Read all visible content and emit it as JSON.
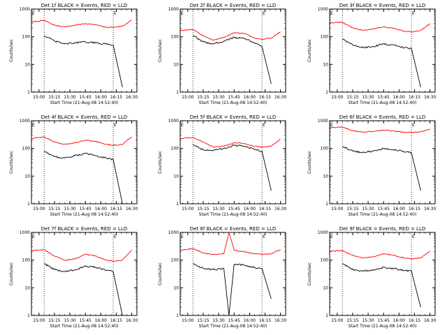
{
  "figure": {
    "xlabel": "Start Time (21-Aug-08 14:52:40)",
    "ylabel": "Counts/sec",
    "x_tick_labels": [
      "15:00",
      "15:15",
      "15:30",
      "15:45",
      "16:00",
      "16:15",
      "16:30"
    ],
    "y_tick_labels": [
      "1",
      "10",
      "100",
      "1000"
    ],
    "marker_labels": [
      "E",
      "E"
    ],
    "colors": {
      "events": "#000000",
      "lld": "#ff0000",
      "axes": "#000000"
    }
  },
  "chart_data": [
    {
      "type": "line",
      "title": "Det 1f BLACK = Events, RED = LLD",
      "x": [
        "14:53",
        "15:05",
        "15:15",
        "15:25",
        "15:35",
        "15:45",
        "15:55",
        "16:05",
        "16:12",
        "16:21",
        "16:30"
      ],
      "series": [
        {
          "name": "LLD",
          "values": [
            340,
            390,
            260,
            230,
            260,
            300,
            270,
            220,
            220,
            240,
            400
          ]
        },
        {
          "name": "Events",
          "values": [
            null,
            110,
            70,
            55,
            60,
            65,
            60,
            55,
            50,
            1.5,
            null
          ]
        }
      ],
      "markers": [
        "15:05",
        "16:12"
      ],
      "ylim": [
        1,
        1000
      ],
      "yscale": "log",
      "grid": false
    },
    {
      "type": "line",
      "title": "Det 2f BLACK = Events, RED = LLD",
      "x": [
        "14:53",
        "15:05",
        "15:15",
        "15:25",
        "15:35",
        "15:45",
        "15:55",
        "16:05",
        "16:12",
        "16:21",
        "16:30"
      ],
      "series": [
        {
          "name": "LLD",
          "values": [
            170,
            180,
            110,
            75,
            95,
            140,
            130,
            90,
            80,
            90,
            150
          ]
        },
        {
          "name": "Events",
          "values": [
            null,
            110,
            65,
            55,
            70,
            95,
            85,
            60,
            45,
            2,
            null
          ]
        }
      ],
      "markers": [
        "15:05",
        "16:12"
      ],
      "ylim": [
        1,
        1000
      ],
      "yscale": "log",
      "grid": false
    },
    {
      "type": "line",
      "title": "Det 3f BLACK = Events, RED = LLD",
      "x": [
        "14:53",
        "15:05",
        "15:15",
        "15:25",
        "15:35",
        "15:45",
        "15:55",
        "16:05",
        "16:12",
        "16:21",
        "16:30"
      ],
      "series": [
        {
          "name": "LLD",
          "values": [
            320,
            330,
            210,
            170,
            190,
            230,
            200,
            160,
            150,
            170,
            300
          ]
        },
        {
          "name": "Events",
          "values": [
            null,
            85,
            50,
            40,
            45,
            55,
            50,
            40,
            38,
            1.5,
            null
          ]
        }
      ],
      "markers": [
        "15:05",
        "16:12"
      ],
      "ylim": [
        1,
        1000
      ],
      "yscale": "log",
      "grid": false
    },
    {
      "type": "line",
      "title": "Det 4f BLACK = Events, RED = LLD",
      "x": [
        "14:53",
        "15:05",
        "15:15",
        "15:25",
        "15:35",
        "15:45",
        "15:55",
        "16:05",
        "16:12",
        "16:21",
        "16:30"
      ],
      "series": [
        {
          "name": "LLD",
          "values": [
            230,
            260,
            170,
            140,
            160,
            200,
            180,
            140,
            130,
            140,
            260
          ]
        },
        {
          "name": "Events",
          "values": [
            null,
            80,
            50,
            45,
            55,
            65,
            55,
            45,
            40,
            1,
            null
          ]
        }
      ],
      "markers": [
        "15:05",
        "16:12"
      ],
      "ylim": [
        1,
        1000
      ],
      "yscale": "log",
      "grid": false
    },
    {
      "type": "line",
      "title": "Det 5f BLACK = Events, RED = LLD",
      "x": [
        "14:53",
        "15:05",
        "15:15",
        "15:25",
        "15:35",
        "15:45",
        "15:55",
        "16:05",
        "16:12",
        "16:21",
        "16:30"
      ],
      "series": [
        {
          "name": "LLD",
          "values": [
            230,
            250,
            170,
            110,
            120,
            160,
            150,
            120,
            110,
            120,
            220
          ]
        },
        {
          "name": "Events",
          "values": [
            null,
            140,
            90,
            85,
            100,
            130,
            120,
            90,
            80,
            3,
            null
          ]
        }
      ],
      "markers": [
        "15:05",
        "16:12"
      ],
      "ylim": [
        1,
        1000
      ],
      "yscale": "log",
      "grid": false
    },
    {
      "type": "line",
      "title": "Det 6f BLACK = Events, RED = LLD",
      "x": [
        "14:53",
        "15:05",
        "15:15",
        "15:25",
        "15:35",
        "15:45",
        "15:55",
        "16:05",
        "16:12",
        "16:21",
        "16:30"
      ],
      "series": [
        {
          "name": "LLD",
          "values": [
            550,
            600,
            430,
            390,
            410,
            460,
            420,
            380,
            380,
            400,
            500
          ]
        },
        {
          "name": "Events",
          "values": [
            null,
            120,
            80,
            70,
            80,
            100,
            90,
            75,
            70,
            3,
            null
          ]
        }
      ],
      "markers": [
        "15:05",
        "16:12"
      ],
      "ylim": [
        1,
        1000
      ],
      "yscale": "log",
      "grid": false
    },
    {
      "type": "line",
      "title": "Det 7f BLACK = Events, RED = LLD",
      "x": [
        "14:53",
        "15:05",
        "15:15",
        "15:25",
        "15:35",
        "15:45",
        "15:55",
        "16:05",
        "16:12",
        "16:21",
        "16:30"
      ],
      "series": [
        {
          "name": "LLD",
          "values": [
            220,
            240,
            140,
            100,
            110,
            160,
            140,
            100,
            90,
            100,
            230
          ]
        },
        {
          "name": "Events",
          "values": [
            null,
            75,
            45,
            38,
            45,
            60,
            55,
            42,
            38,
            1,
            null
          ]
        }
      ],
      "markers": [
        "15:05",
        "16:12"
      ],
      "ylim": [
        1,
        1000
      ],
      "yscale": "log",
      "grid": false
    },
    {
      "type": "line",
      "title": "Det 8f BLACK = Events, RED = LLD",
      "x": [
        "14:53",
        "15:05",
        "15:15",
        "15:25",
        "15:35",
        "15:40",
        "15:45",
        "15:55",
        "16:05",
        "16:12",
        "16:21",
        "16:30"
      ],
      "series": [
        {
          "name": "LLD",
          "values": [
            230,
            260,
            180,
            160,
            170,
            1000,
            230,
            200,
            170,
            160,
            170,
            240
          ]
        },
        {
          "name": "Events",
          "values": [
            null,
            75,
            50,
            45,
            50,
            1,
            70,
            65,
            55,
            50,
            4,
            null
          ]
        }
      ],
      "markers": [
        "15:05",
        "16:12"
      ],
      "ylim": [
        1,
        1000
      ],
      "yscale": "log",
      "grid": false
    },
    {
      "type": "line",
      "title": "Det 9f BLACK = Events, RED = LLD",
      "x": [
        "14:53",
        "15:05",
        "15:15",
        "15:25",
        "15:35",
        "15:45",
        "15:55",
        "16:05",
        "16:12",
        "16:21",
        "16:30"
      ],
      "series": [
        {
          "name": "LLD",
          "values": [
            210,
            220,
            150,
            120,
            130,
            170,
            150,
            120,
            110,
            120,
            210
          ]
        },
        {
          "name": "Events",
          "values": [
            null,
            75,
            45,
            40,
            45,
            55,
            50,
            42,
            40,
            2,
            null
          ]
        }
      ],
      "markers": [
        "15:05",
        "16:12"
      ],
      "ylim": [
        1,
        1000
      ],
      "yscale": "log",
      "grid": false
    }
  ]
}
